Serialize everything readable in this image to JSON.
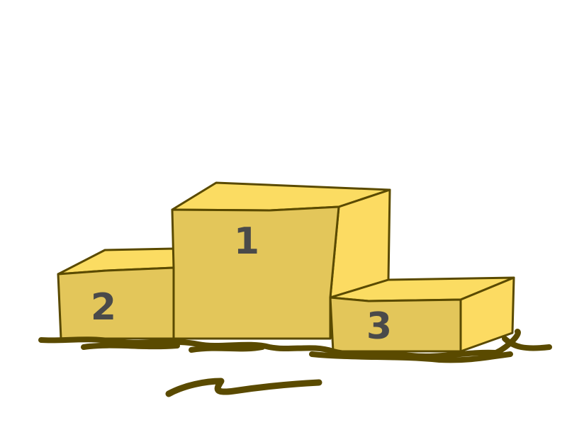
{
  "podium": {
    "first_place": "1",
    "second_place": "2",
    "third_place": "3"
  },
  "colors": {
    "top_face": "#fbdc62",
    "front_face": "#e3c65a",
    "side_face": "#fcdb62",
    "outline": "#5a4a00",
    "ground": "#5a4a00",
    "number": "#4a4a4a",
    "background": "#ffffff"
  }
}
